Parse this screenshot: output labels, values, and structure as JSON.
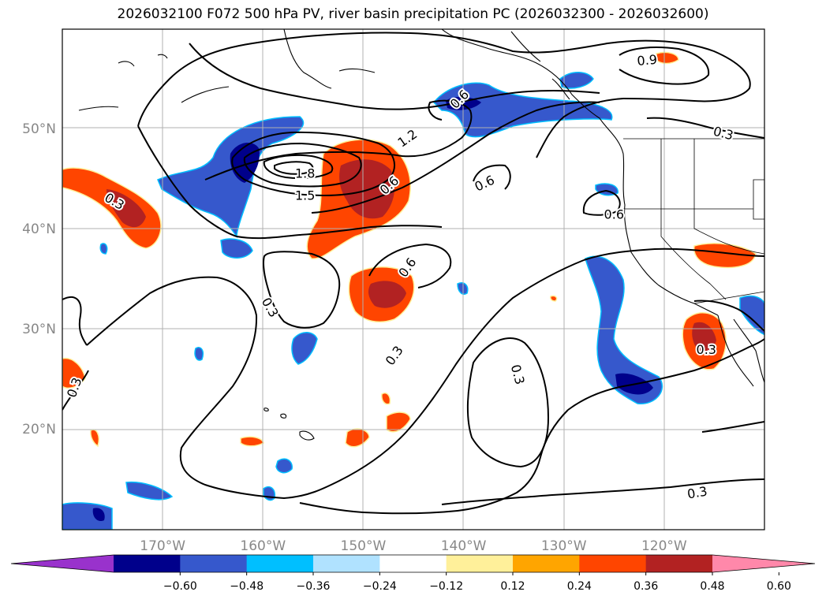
{
  "title": "2026032100 F072 500 hPa PV, river basin precipitation PC (2026032300 - 2026032600)",
  "map": {
    "lon_range": [
      -180,
      -110
    ],
    "lat_range": [
      10,
      60
    ],
    "lat_labels": [
      {
        "lat": 50,
        "text": "50°N"
      },
      {
        "lat": 40,
        "text": "40°N"
      },
      {
        "lat": 30,
        "text": "30°N"
      },
      {
        "lat": 20,
        "text": "20°N"
      }
    ],
    "lon_labels": [
      {
        "lon": -170,
        "text": "170°W"
      },
      {
        "lon": -160,
        "text": "160°W"
      },
      {
        "lon": -150,
        "text": "150°W"
      },
      {
        "lon": -140,
        "text": "140°W"
      },
      {
        "lon": -130,
        "text": "130°W"
      },
      {
        "lon": -120,
        "text": "120°W"
      }
    ],
    "contour_labels": [
      {
        "text": "1.8",
        "lon": -155.8,
        "lat": 45.6,
        "rot": 0
      },
      {
        "text": "1.5",
        "lon": -155.8,
        "lat": 43.4,
        "rot": 0
      },
      {
        "text": "1.2",
        "lon": -145.6,
        "lat": 49.1,
        "rot": -35
      },
      {
        "text": "0.9",
        "lon": -121.7,
        "lat": 56.9,
        "rot": -5
      },
      {
        "text": "0.6",
        "lon": -140.4,
        "lat": 53.0,
        "rot": -45
      },
      {
        "text": "0.6",
        "lon": -147.4,
        "lat": 44.4,
        "rot": -42
      },
      {
        "text": "0.6",
        "lon": -137.9,
        "lat": 44.6,
        "rot": -25
      },
      {
        "text": "0.6",
        "lon": -125.0,
        "lat": 41.5,
        "rot": 0
      },
      {
        "text": "0.6",
        "lon": -145.6,
        "lat": 36.2,
        "rot": -55
      },
      {
        "text": "0.3",
        "lon": -174.8,
        "lat": 42.8,
        "rot": 30
      },
      {
        "text": "0.3",
        "lon": -114.1,
        "lat": 49.6,
        "rot": 15
      },
      {
        "text": "0.3",
        "lon": -159.3,
        "lat": 32.2,
        "rot": 60
      },
      {
        "text": "0.3",
        "lon": -146.9,
        "lat": 27.4,
        "rot": -55
      },
      {
        "text": "0.3",
        "lon": -134.6,
        "lat": 25.5,
        "rot": 75
      },
      {
        "text": "0.3",
        "lon": -115.8,
        "lat": 28.0,
        "rot": 0
      },
      {
        "text": "0.3",
        "lon": -178.8,
        "lat": 24.2,
        "rot": -70
      },
      {
        "text": "0.3",
        "lon": -116.7,
        "lat": 13.7,
        "rot": -10
      }
    ]
  },
  "colorbar": {
    "colors": [
      "#9932cc",
      "#00008b",
      "#3658cc",
      "#00bfff",
      "#b0e2ff",
      "#ffffff",
      "#fff09a",
      "#ffa500",
      "#ff4500",
      "#b22222",
      "#ff88aa"
    ],
    "ticks": [
      "−0.60",
      "−0.48",
      "−0.36",
      "−0.24",
      "−0.12",
      "0.12",
      "0.24",
      "0.36",
      "0.48",
      "0.60"
    ]
  }
}
